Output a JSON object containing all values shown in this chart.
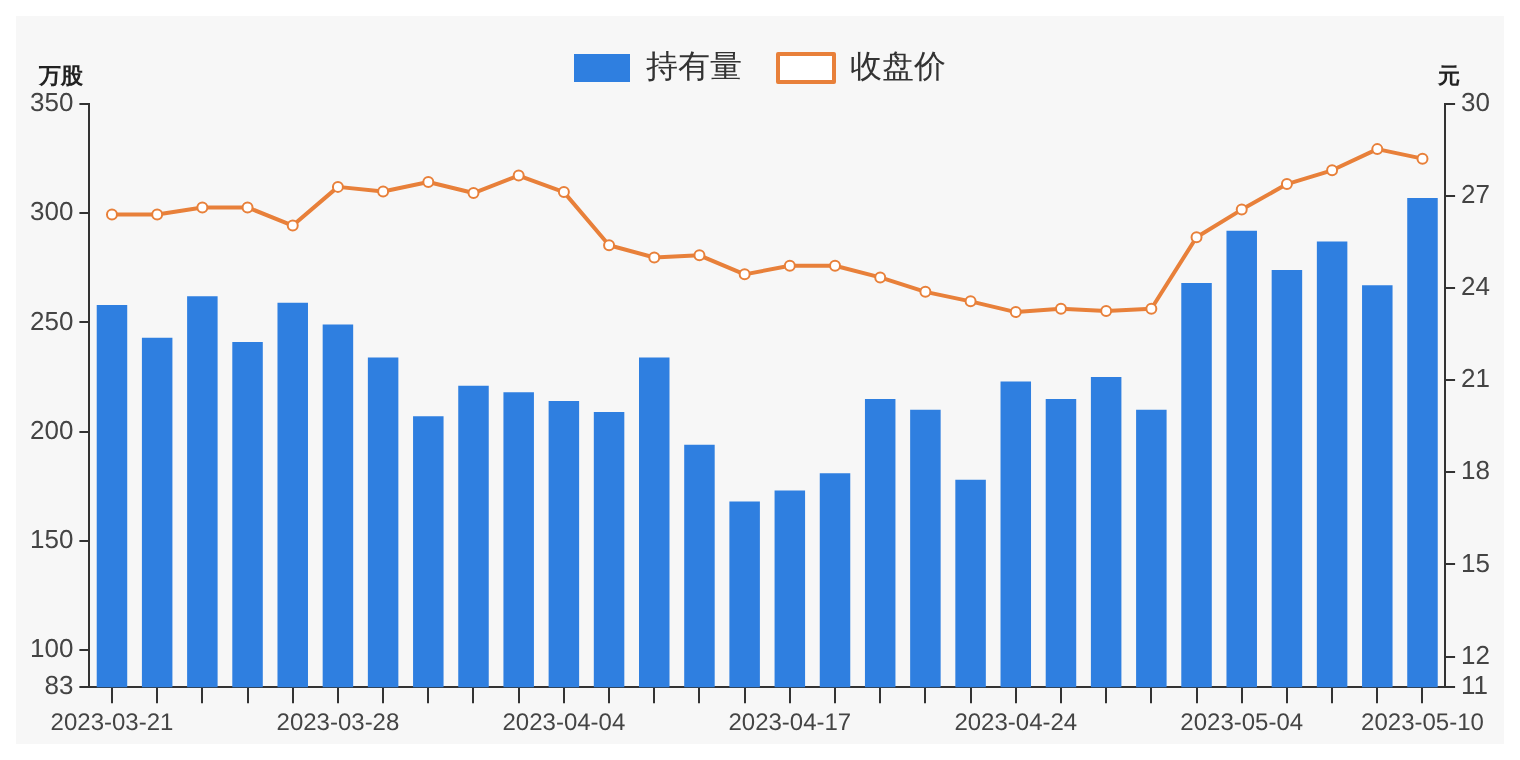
{
  "chart_data": {
    "type": "bar",
    "categories": [
      "2023-03-21",
      null,
      null,
      null,
      null,
      "2023-03-28",
      null,
      null,
      null,
      null,
      "2023-04-04",
      null,
      null,
      null,
      null,
      "2023-04-17",
      null,
      null,
      null,
      null,
      "2023-04-24",
      null,
      null,
      null,
      null,
      "2023-05-04",
      null,
      null,
      null,
      "2023-05-10"
    ],
    "series": [
      {
        "name": "持有量",
        "color": "#2f7fe0",
        "values": [
          258,
          243,
          262,
          241,
          259,
          249,
          234,
          207,
          221,
          218,
          214,
          209,
          234,
          194,
          168,
          173,
          181,
          215,
          210,
          178,
          223,
          215,
          225,
          210,
          268,
          292,
          274,
          287,
          267,
          307
        ]
      },
      {
        "name": "收盘价",
        "type": "line",
        "axis": "y2",
        "color": "#e8803a",
        "marker": "circle",
        "values": [
          26.4,
          26.4,
          26.63,
          26.63,
          26.04,
          27.3,
          27.15,
          27.46,
          27.1,
          27.67,
          27.13,
          25.4,
          25.0,
          25.07,
          24.45,
          24.73,
          24.73,
          24.35,
          23.88,
          23.57,
          23.22,
          23.33,
          23.26,
          23.33,
          25.66,
          26.56,
          27.39,
          27.84,
          28.53,
          28.22
        ]
      }
    ],
    "ylabel": "万股",
    "y2label": "元",
    "ylim": [
      83,
      350
    ],
    "yticks": [
      83,
      100,
      150,
      200,
      250,
      300,
      350
    ],
    "y2lim": [
      11,
      30
    ],
    "y2ticks": [
      11,
      12,
      15,
      18,
      21,
      24,
      27,
      30
    ],
    "legend": "top",
    "grid": false
  }
}
